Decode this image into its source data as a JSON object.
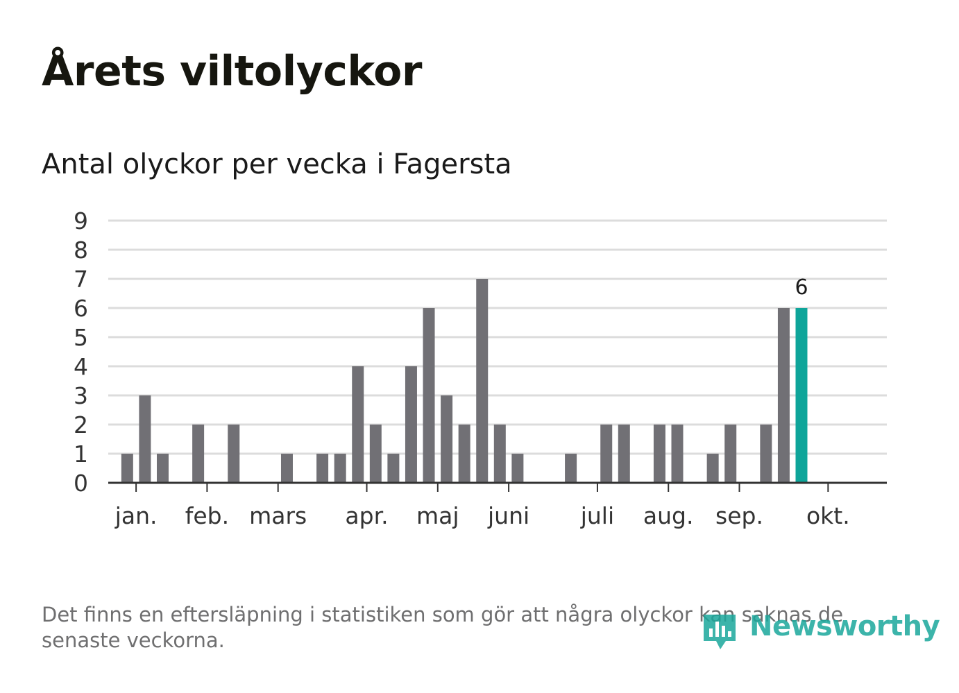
{
  "header": {
    "title": "Årets viltolyckor",
    "subtitle": "Antal olyckor per vecka i Fagersta"
  },
  "footer": {
    "note": "Det finns en eftersläpning i statistiken som gör att några olyckor kan saknas de senaste veckorna.",
    "brand": "Newsworthy"
  },
  "colors": {
    "bar": "#717075",
    "highlight": "#0ea59a",
    "grid": "#dcdcdc",
    "axis": "#333333",
    "brand": "#1ba89c"
  },
  "chart_data": {
    "type": "bar",
    "title": "Antal olyckor per vecka i Fagersta",
    "xlabel": "",
    "ylabel": "",
    "ylim": [
      0,
      9
    ],
    "yticks": [
      "0",
      "1",
      "2",
      "3",
      "4",
      "5",
      "6",
      "7",
      "8",
      "9"
    ],
    "grid": true,
    "weeks": [
      1,
      2,
      3,
      4,
      5,
      6,
      7,
      8,
      9,
      10,
      11,
      12,
      13,
      14,
      15,
      16,
      17,
      18,
      19,
      20,
      21,
      22,
      23,
      24,
      25,
      26,
      27,
      28,
      29,
      30,
      31,
      32,
      33,
      34,
      35,
      36,
      37,
      38,
      39,
      40,
      41
    ],
    "values": [
      0,
      0,
      1,
      3,
      1,
      0,
      2,
      0,
      2,
      0,
      0,
      1,
      0,
      1,
      1,
      4,
      2,
      1,
      4,
      6,
      3,
      2,
      7,
      2,
      1,
      0,
      0,
      1,
      0,
      2,
      2,
      0,
      2,
      2,
      0,
      1,
      2,
      0,
      2,
      6,
      6
    ],
    "highlight_index": 40,
    "highlight_label": "6",
    "month_labels": [
      {
        "label": "jan.",
        "week": 3.5
      },
      {
        "label": "feb.",
        "week": 7.5
      },
      {
        "label": "mars",
        "week": 11.5
      },
      {
        "label": "apr.",
        "week": 16.5
      },
      {
        "label": "maj",
        "week": 20.5
      },
      {
        "label": "juni",
        "week": 24.5
      },
      {
        "label": "juli",
        "week": 29.5
      },
      {
        "label": "aug.",
        "week": 33.5
      },
      {
        "label": "sep.",
        "week": 37.5
      },
      {
        "label": "okt.",
        "week": 42.5
      }
    ]
  }
}
